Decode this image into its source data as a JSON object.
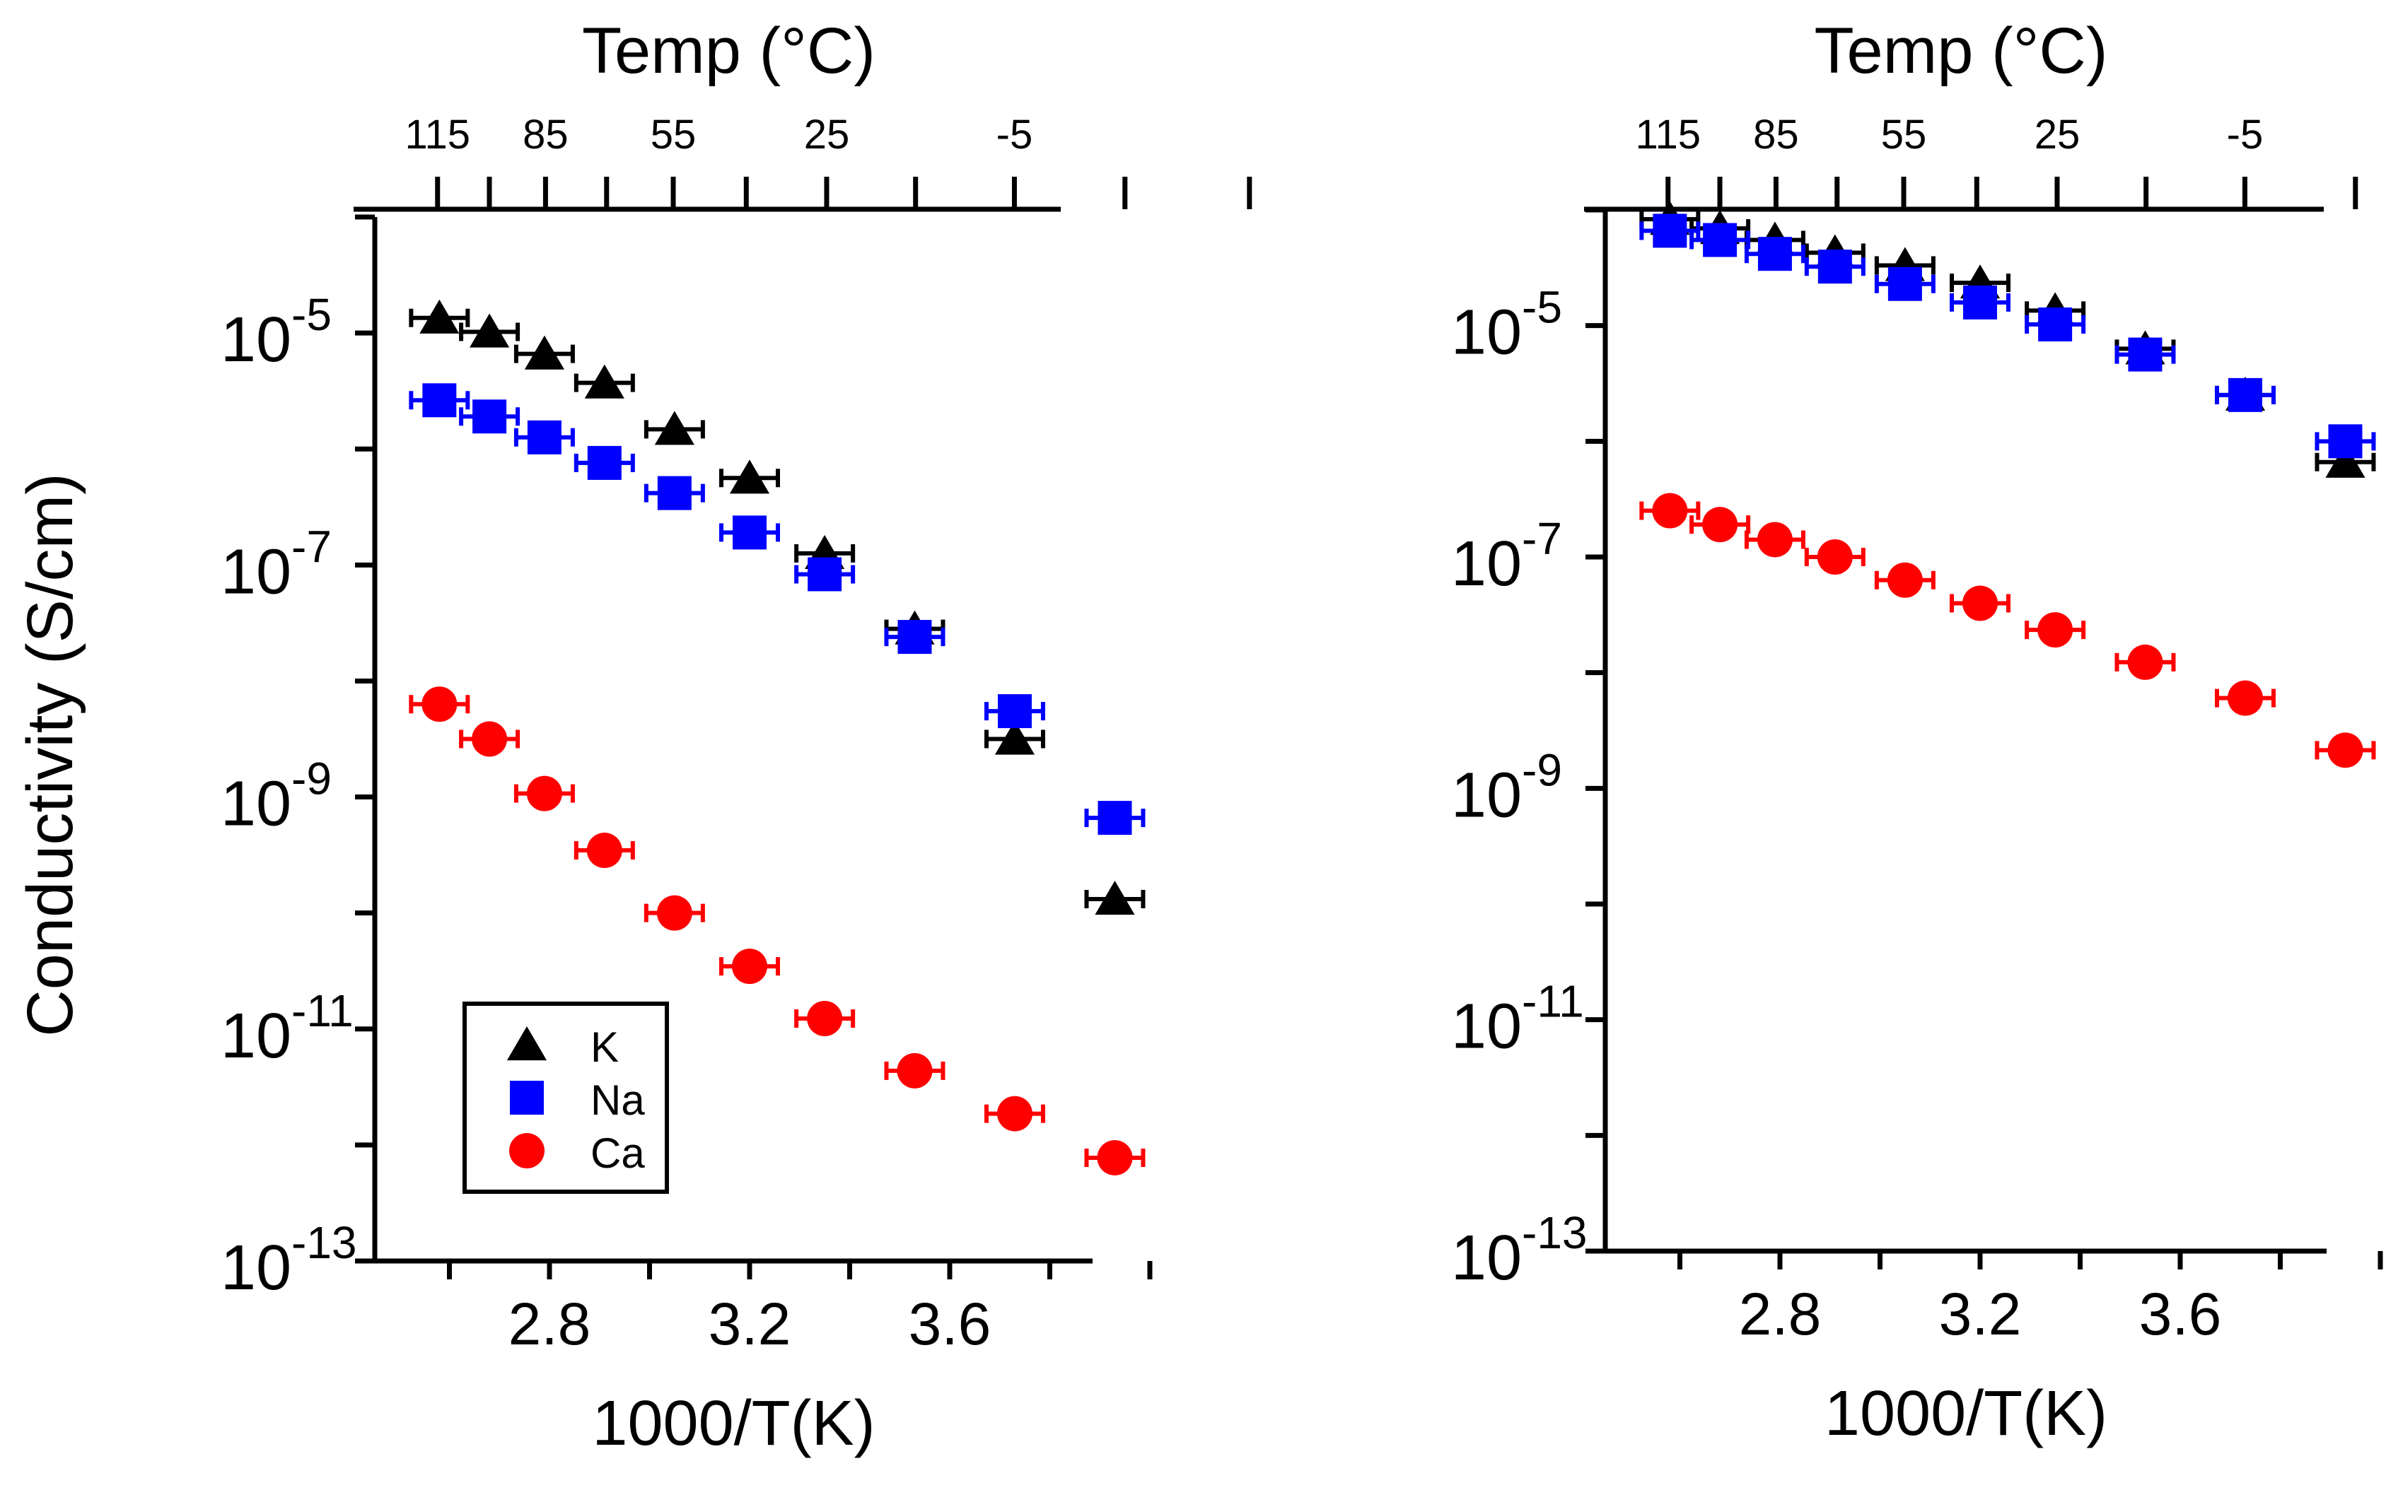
{
  "figure": {
    "ylabel": "Conductivity (S/cm)"
  },
  "chart_data": [
    {
      "type": "scatter",
      "panel": "left",
      "xlabel": "1000/T(K)",
      "top_title": "Temp (°C)",
      "top_ticks": [
        "115",
        "85",
        "55",
        "25",
        "-5"
      ],
      "top_tick_values_c": [
        115,
        85,
        55,
        25,
        -5
      ],
      "x_ticks": [
        "2.8",
        "3.2",
        "3.6"
      ],
      "x_tick_values": [
        2.8,
        3.2,
        3.6
      ],
      "xlim": [
        2.41,
        4.03
      ],
      "ylim_log10": [
        -13,
        -4
      ],
      "y_ticks": [
        {
          "mant": "10",
          "exp": "-5"
        },
        {
          "mant": "10",
          "exp": "-7"
        },
        {
          "mant": "10",
          "exp": "-9"
        },
        {
          "mant": "10",
          "exp": "-11"
        },
        {
          "mant": "10",
          "exp": "-13"
        }
      ],
      "y_tick_exponents": [
        -5,
        -7,
        -9,
        -11,
        -13
      ],
      "legend": {
        "position": "lower-left",
        "entries": [
          "K",
          "Na",
          "Ca"
        ]
      },
      "series": [
        {
          "name": "K",
          "marker": "triangle",
          "color": "#000000",
          "x": [
            2.58,
            2.68,
            2.79,
            2.91,
            3.05,
            3.2,
            3.35,
            3.53,
            3.73,
            3.93
          ],
          "log10_y": [
            -4.87,
            -4.99,
            -5.18,
            -5.43,
            -5.83,
            -6.25,
            -6.9,
            -7.55,
            -8.5,
            -9.88
          ]
        },
        {
          "name": "Na",
          "marker": "square",
          "color": "#0000ff",
          "x": [
            2.58,
            2.68,
            2.79,
            2.91,
            3.05,
            3.2,
            3.35,
            3.53,
            3.73,
            3.93
          ],
          "log10_y": [
            -5.58,
            -5.72,
            -5.9,
            -6.12,
            -6.38,
            -6.72,
            -7.08,
            -7.62,
            -8.26,
            -9.18
          ]
        },
        {
          "name": "Ca",
          "marker": "circle",
          "color": "#ff0000",
          "x": [
            2.58,
            2.68,
            2.79,
            2.91,
            3.05,
            3.2,
            3.35,
            3.53,
            3.73,
            3.93
          ],
          "log10_y": [
            -8.2,
            -8.5,
            -8.97,
            -9.46,
            -10.0,
            -10.46,
            -10.91,
            -11.36,
            -11.73,
            -12.11
          ]
        }
      ]
    },
    {
      "type": "scatter",
      "panel": "right",
      "xlabel": "1000/T(K)",
      "top_title": "Temp (°C)",
      "top_ticks": [
        "115",
        "85",
        "55",
        "25",
        "-5"
      ],
      "top_tick_values_c": [
        115,
        85,
        55,
        25,
        -5
      ],
      "x_ticks": [
        "2.8",
        "3.2",
        "3.6"
      ],
      "x_tick_values": [
        2.8,
        3.2,
        3.6
      ],
      "xlim": [
        2.41,
        4.03
      ],
      "ylim_log10": [
        -13,
        -4
      ],
      "y_ticks": [
        {
          "mant": "10",
          "exp": "-5"
        },
        {
          "mant": "10",
          "exp": "-7"
        },
        {
          "mant": "10",
          "exp": "-9"
        },
        {
          "mant": "10",
          "exp": "-11"
        },
        {
          "mant": "10",
          "exp": "-13"
        }
      ],
      "y_tick_exponents": [
        -5,
        -7,
        -9,
        -11,
        -13
      ],
      "series": [
        {
          "name": "K",
          "marker": "triangle",
          "color": "#000000",
          "x": [
            2.58,
            2.68,
            2.79,
            2.91,
            3.05,
            3.2,
            3.35,
            3.53,
            3.73,
            3.93
          ],
          "log10_y": [
            -4.08,
            -4.16,
            -4.26,
            -4.37,
            -4.48,
            -4.63,
            -4.87,
            -5.2,
            -5.6,
            -6.18
          ]
        },
        {
          "name": "Na",
          "marker": "square",
          "color": "#0000ff",
          "x": [
            2.58,
            2.68,
            2.79,
            2.91,
            3.05,
            3.2,
            3.35,
            3.53,
            3.73,
            3.93
          ],
          "log10_y": [
            -4.18,
            -4.26,
            -4.38,
            -4.49,
            -4.64,
            -4.8,
            -4.99,
            -5.25,
            -5.6,
            -6.0
          ]
        },
        {
          "name": "Ca",
          "marker": "circle",
          "color": "#ff0000",
          "x": [
            2.58,
            2.68,
            2.79,
            2.91,
            3.05,
            3.2,
            3.35,
            3.53,
            3.73,
            3.93
          ],
          "log10_y": [
            -6.6,
            -6.72,
            -6.85,
            -7.0,
            -7.2,
            -7.4,
            -7.63,
            -7.91,
            -8.22,
            -8.67
          ]
        }
      ]
    }
  ]
}
